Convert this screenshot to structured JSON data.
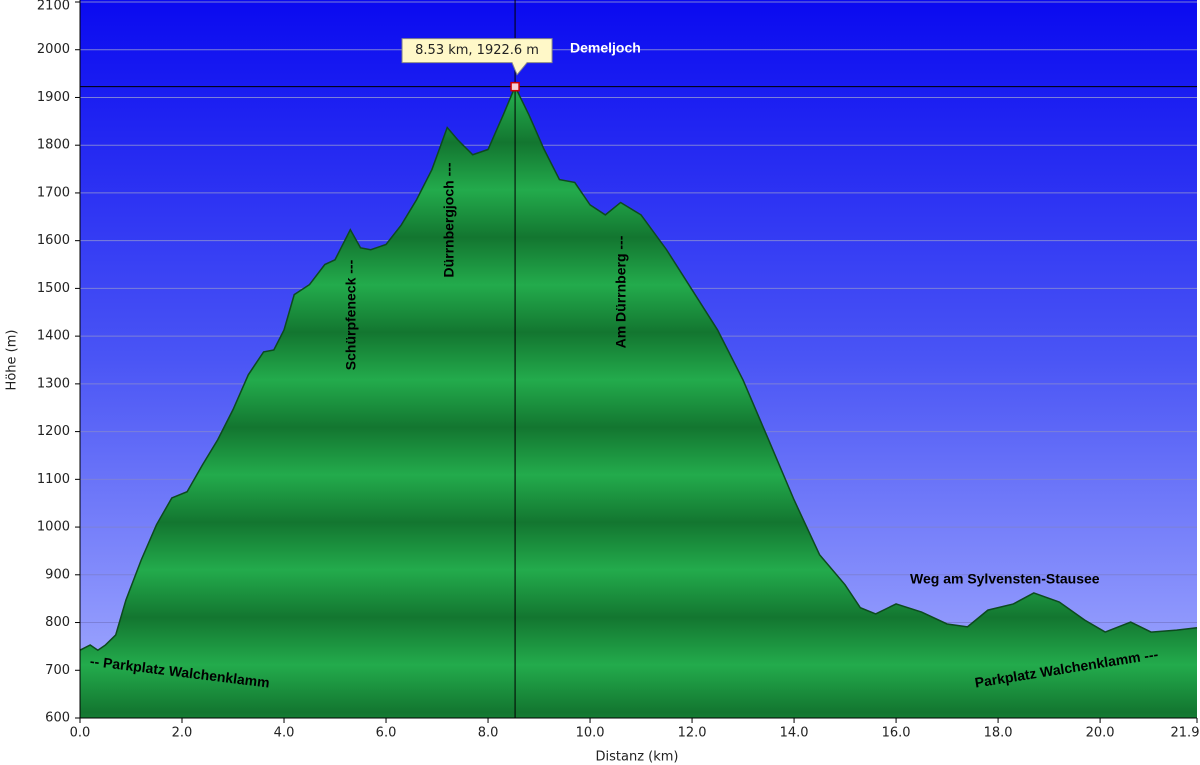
{
  "chart_data": {
    "type": "area",
    "xlabel": "Distanz  (km)",
    "ylabel": "Höhe (m)",
    "x": [
      0,
      0.2,
      0.35,
      0.5,
      0.7,
      0.9,
      1.2,
      1.5,
      1.8,
      2.1,
      2.4,
      2.7,
      3.0,
      3.3,
      3.6,
      3.8,
      4.0,
      4.2,
      4.5,
      4.8,
      5.0,
      5.2,
      5.3,
      5.5,
      5.7,
      6.0,
      6.3,
      6.6,
      6.9,
      7.2,
      7.4,
      7.7,
      8.0,
      8.3,
      8.53,
      8.8,
      9.1,
      9.4,
      9.7,
      10.0,
      10.3,
      10.6,
      11.0,
      11.5,
      12.0,
      12.5,
      13.0,
      13.5,
      14.0,
      14.5,
      15.0,
      15.3,
      15.6,
      16.0,
      16.5,
      17.0,
      17.4,
      17.8,
      18.3,
      18.7,
      19.2,
      19.7,
      20.1,
      20.6,
      21.0,
      21.5,
      21.9
    ],
    "series": [
      {
        "color": "#1f9e45",
        "values": [
          742,
          753,
          742,
          753,
          774,
          847,
          931,
          1005,
          1061,
          1074,
          1130,
          1183,
          1246,
          1319,
          1367,
          1371,
          1413,
          1487,
          1508,
          1550,
          1560,
          1602,
          1623,
          1585,
          1581,
          1592,
          1633,
          1686,
          1749,
          1837,
          1812,
          1780,
          1791,
          1864,
          1922.6,
          1864,
          1791,
          1728,
          1722,
          1675,
          1654,
          1680,
          1654,
          1581,
          1497,
          1413,
          1308,
          1183,
          1057,
          942,
          879,
          831,
          818,
          839,
          822,
          797,
          791,
          826,
          839,
          862,
          843,
          805,
          780,
          801,
          780,
          784,
          789
        ]
      }
    ],
    "xlim": [
      0,
      21.9
    ],
    "xticks": [
      {
        "value": 0,
        "label": "0.0"
      },
      {
        "value": 2,
        "label": "2.0"
      },
      {
        "value": 4,
        "label": "4.0"
      },
      {
        "value": 6,
        "label": "6.0"
      },
      {
        "value": 8,
        "label": "8.0"
      },
      {
        "value": 10,
        "label": "10.0"
      },
      {
        "value": 12,
        "label": "12.0"
      },
      {
        "value": 14,
        "label": "14.0"
      },
      {
        "value": 16,
        "label": "16.0"
      },
      {
        "value": 18,
        "label": "18.0"
      },
      {
        "value": 20,
        "label": "20.0"
      },
      {
        "value": 21.9,
        "label": "21.9"
      }
    ],
    "ylim": [
      600,
      2100
    ],
    "yticks": [
      600,
      700,
      800,
      900,
      1000,
      1100,
      1200,
      1300,
      1400,
      1500,
      1600,
      1700,
      1800,
      1900,
      2000,
      2100
    ],
    "grid": true,
    "cursor": {
      "x": 8.53,
      "y": 1922.6,
      "label": "8.53 km, 1922.6 m"
    },
    "annotations": [
      "Demeljoch",
      "Schürpfeneck ---",
      "Dürrnbergjoch ---",
      "Am Dürrnberg ---",
      "Weg am Sylvensten-Stausee",
      "-- Parkplatz Walchenklamm",
      "Parkplatz Walchenklamm ---"
    ]
  }
}
